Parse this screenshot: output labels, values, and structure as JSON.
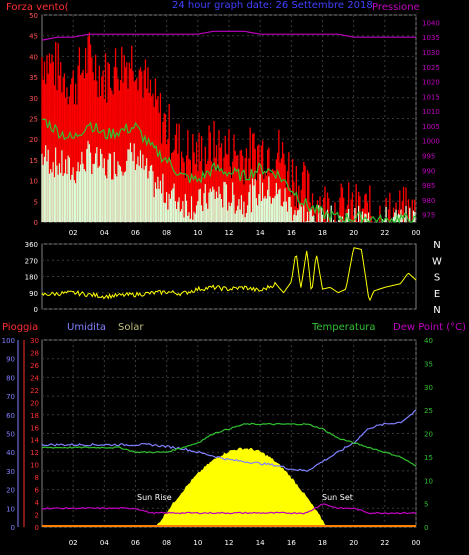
{
  "colors": {
    "background": "#000000",
    "frame": "#808080",
    "grid": "#3a3a3a",
    "wind_label": "#ff3030",
    "pressure": "#c000c0",
    "title": "#4040ff",
    "gust": "#ff0000",
    "wind_avg": "#30c030",
    "wind_min": "#d8ffd8",
    "direction": "#ffff00",
    "rain": "#ff3030",
    "humidity": "#8080ff",
    "solar": "#ffff00",
    "temperature": "#30c030",
    "dew_point": "#c000c0",
    "time_label": "#ffffff"
  },
  "header": {
    "title": "24 hour graph date: 26 Settembre 2018",
    "left_label": "Forza vento(",
    "right_label": "Pressione"
  },
  "bottom_header": {
    "rain": "Pioggia",
    "humidity": "Umidita",
    "solar": "Solar",
    "temperature": "Temperatura",
    "dew_point": "Dew Point (°C)"
  },
  "annotations": {
    "sunrise": "Sun Rise",
    "sunset": "Sun Set"
  },
  "time_ticks": [
    "02",
    "04",
    "06",
    "08",
    "10",
    "12",
    "14",
    "16",
    "18",
    "20",
    "22",
    "00"
  ],
  "chart_data": [
    {
      "type": "line",
      "name": "wind",
      "yticks_left": [
        0,
        5,
        10,
        15,
        20,
        25,
        30,
        35,
        40,
        45,
        50
      ],
      "yticks_right": [
        975,
        980,
        985,
        990,
        995,
        1000,
        1005,
        1010,
        1015,
        1020,
        1025,
        1030,
        1035,
        1040
      ],
      "ylim": [
        0,
        50
      ],
      "ylim_right": [
        972.5,
        1042.5
      ],
      "x_hours": [
        0,
        1,
        2,
        3,
        4,
        5,
        6,
        7,
        8,
        9,
        10,
        11,
        12,
        13,
        14,
        15,
        16,
        17,
        18,
        19,
        20,
        21,
        22,
        23,
        24
      ],
      "gust": [
        40,
        37,
        33,
        40,
        35,
        38,
        40,
        30,
        23,
        17,
        16,
        18,
        17,
        16,
        17,
        18,
        12,
        7,
        4,
        3,
        3,
        2,
        1,
        2,
        1
      ],
      "wind_avg": [
        25,
        22,
        20,
        24,
        21,
        22,
        23,
        18,
        15,
        11,
        10,
        13,
        12,
        11,
        13,
        12,
        8,
        4,
        2,
        1,
        1,
        1,
        0,
        1,
        0
      ],
      "wind_min": [
        16,
        14,
        12,
        16,
        13,
        15,
        16,
        10,
        7,
        5,
        4,
        7,
        6,
        5,
        8,
        7,
        4,
        1,
        0,
        0,
        0,
        0,
        0,
        0,
        0
      ],
      "pressure": [
        1034,
        1035,
        1035,
        1036,
        1036,
        1036,
        1036,
        1036,
        1036,
        1036,
        1036,
        1037,
        1037,
        1037,
        1036,
        1036,
        1036,
        1036,
        1036,
        1036,
        1035,
        1035,
        1035,
        1035,
        1035
      ]
    },
    {
      "type": "line",
      "name": "direction",
      "yticks": [
        0,
        90,
        180,
        270,
        360
      ],
      "ylim": [
        0,
        360
      ],
      "compass": [
        "N",
        "W",
        "S",
        "E",
        "N"
      ],
      "x_hours": [
        0,
        2,
        4,
        6,
        8,
        9,
        10,
        11,
        12,
        13,
        14,
        15,
        15.5,
        16,
        16.3,
        16.6,
        17,
        17.3,
        17.6,
        18,
        18.5,
        19,
        19.5,
        20,
        20.5,
        21,
        21.3,
        22,
        23,
        23.5,
        24
      ],
      "direction": [
        80,
        90,
        70,
        80,
        95,
        85,
        110,
        120,
        110,
        120,
        100,
        140,
        90,
        150,
        320,
        110,
        330,
        80,
        310,
        110,
        120,
        90,
        110,
        340,
        330,
        40,
        100,
        120,
        140,
        200,
        160
      ]
    },
    {
      "type": "line",
      "name": "weather",
      "yticks_humidity": [
        0,
        10,
        20,
        30,
        40,
        50,
        60,
        70,
        80,
        90,
        100
      ],
      "yticks_rain": [
        0,
        2,
        4,
        6,
        8,
        10,
        12,
        14,
        16,
        18,
        20,
        22,
        24,
        26,
        28,
        30
      ],
      "yticks_temp": [
        0,
        5,
        10,
        15,
        20,
        25,
        30,
        35,
        40
      ],
      "ylim": [
        0,
        100
      ],
      "ylim_temp": [
        0,
        40
      ],
      "x_hours": [
        0,
        1,
        2,
        3,
        4,
        5,
        6,
        7,
        8,
        9,
        10,
        11,
        12,
        13,
        14,
        15,
        16,
        17,
        18,
        19,
        20,
        21,
        22,
        23,
        24
      ],
      "humidity": [
        44,
        44,
        44,
        44,
        44,
        44,
        44,
        44,
        43,
        42,
        40,
        38,
        36,
        35,
        34,
        33,
        31,
        30,
        35,
        40,
        45,
        53,
        55,
        56,
        62
      ],
      "temperature": [
        17,
        17,
        17,
        17,
        17,
        17,
        16,
        16,
        16,
        17,
        18,
        20,
        21,
        22,
        22,
        22,
        22,
        22,
        21,
        19,
        18,
        17,
        16,
        15,
        13
      ],
      "dew_point": [
        4,
        4,
        4,
        4,
        4,
        4,
        4,
        3,
        3,
        3,
        3,
        3,
        3,
        3,
        3,
        3,
        3,
        3,
        5,
        4,
        4,
        3,
        3,
        3,
        3
      ],
      "rain": [
        0,
        0,
        0,
        0,
        0,
        0,
        0,
        0,
        0,
        0,
        0,
        0,
        0,
        0,
        0,
        0,
        0,
        0,
        0,
        0,
        0,
        0,
        0,
        0,
        0
      ],
      "solar_peak_hour": 13,
      "solar_start_hour": 7.3,
      "solar_end_hour": 18.3,
      "solar_peak_pct": 42
    }
  ]
}
